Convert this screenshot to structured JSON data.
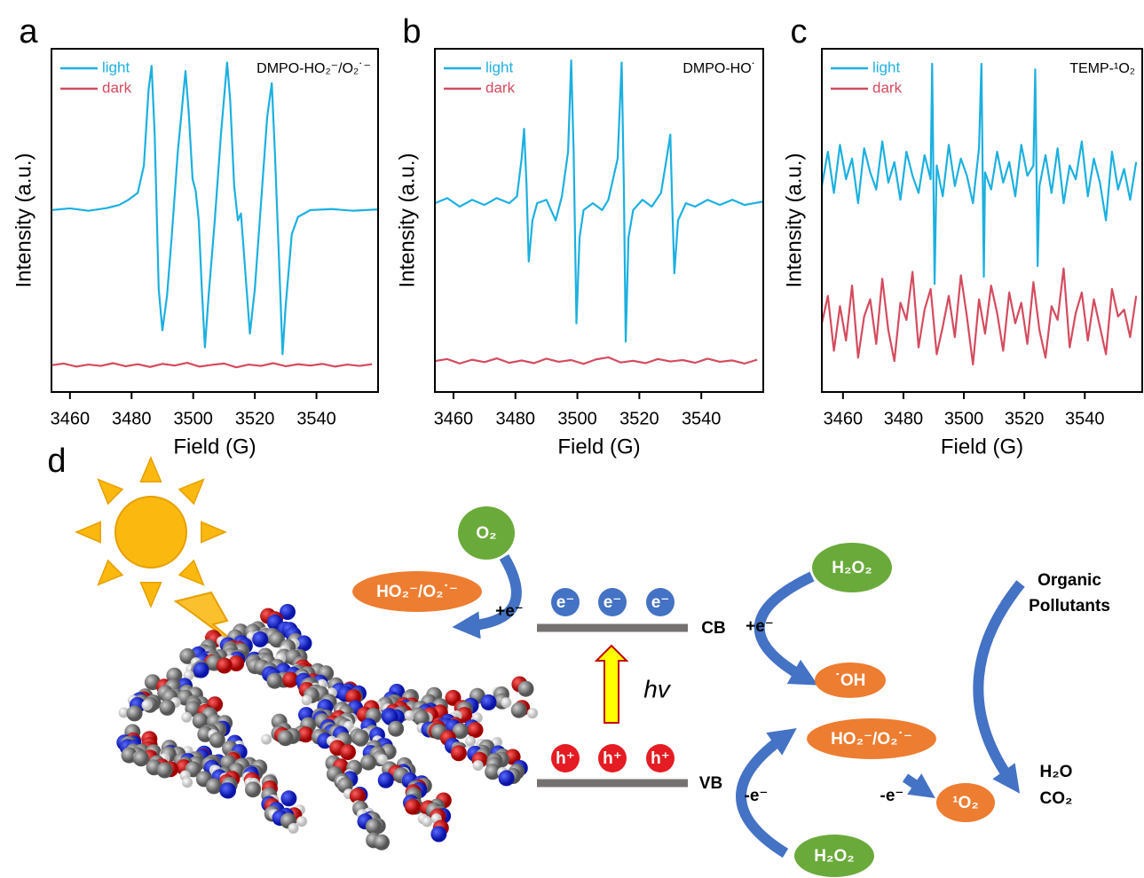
{
  "chart_data": [
    {
      "type": "line",
      "panel_label": "a",
      "annotation": "DMPO-HO₂⁻/O₂˙⁻",
      "x_label": "Field (G)",
      "y_label": "Intensity (a.u.)",
      "xlim": [
        3454,
        3560
      ],
      "xticks": [
        3460,
        3480,
        3500,
        3520,
        3540
      ],
      "ylim": [
        0,
        100
      ],
      "legend": "upper left",
      "series": [
        {
          "name": "light",
          "color": "#1cb0e0",
          "x": [
            3454,
            3460,
            3466,
            3472,
            3476,
            3479,
            3482,
            3484,
            3485.5,
            3486.5,
            3487.5,
            3488.8,
            3490,
            3491.5,
            3493,
            3495,
            3497.5,
            3498.5,
            3499.8,
            3500.8,
            3501.8,
            3502.8,
            3503.8,
            3505,
            3507,
            3509,
            3511,
            3512,
            3513.3,
            3514.5,
            3515.5,
            3516.5,
            3518.4,
            3520,
            3522,
            3524,
            3525.5,
            3526.5,
            3528,
            3529,
            3530,
            3532,
            3534,
            3538,
            3545,
            3552,
            3560
          ],
          "values": [
            53,
            53.5,
            52.8,
            53.6,
            54.5,
            56,
            58,
            66,
            88,
            95,
            75,
            30,
            18,
            28,
            45,
            70,
            93.5,
            82,
            62,
            58.6,
            50,
            30,
            13,
            28,
            50,
            75,
            96,
            85,
            60,
            50,
            52,
            40,
            17,
            30,
            55,
            80,
            90,
            70,
            35,
            11,
            25,
            46,
            51,
            53,
            53.3,
            52.8,
            53.2
          ]
        },
        {
          "name": "dark",
          "color": "#d44b5e",
          "x": [
            3454,
            3458,
            3462,
            3466,
            3470,
            3474,
            3478,
            3482,
            3486,
            3490,
            3494,
            3498,
            3502,
            3506,
            3510,
            3514,
            3518,
            3522,
            3526,
            3530,
            3534,
            3538,
            3542,
            3546,
            3550,
            3554,
            3558
          ],
          "values": [
            7.8,
            8.3,
            7.4,
            8.0,
            7.6,
            8.4,
            7.5,
            8.1,
            7.3,
            8.2,
            7.7,
            8.5,
            7.4,
            7.9,
            8.3,
            7.2,
            8.0,
            7.6,
            8.4,
            7.5,
            8.1,
            7.7,
            8.2,
            7.4,
            8.0,
            7.6,
            8.1
          ]
        }
      ]
    },
    {
      "type": "line",
      "panel_label": "b",
      "annotation": "DMPO-HO˙",
      "x_label": "Field (G)",
      "y_label": "Intensity (a.u.)",
      "xlim": [
        3454,
        3560
      ],
      "xticks": [
        3460,
        3480,
        3500,
        3520,
        3540
      ],
      "ylim": [
        0,
        100
      ],
      "legend": "upper left",
      "series": [
        {
          "name": "light",
          "color": "#1cb0e0",
          "x": [
            3454,
            3458,
            3462,
            3466,
            3470,
            3474,
            3478,
            3480.5,
            3482,
            3482.8,
            3483.6,
            3484.3,
            3485.5,
            3487,
            3490,
            3493,
            3495,
            3497,
            3498,
            3498.8,
            3499.7,
            3500.7,
            3502,
            3505,
            3508,
            3510,
            3513,
            3514.3,
            3515,
            3515.6,
            3516.5,
            3518,
            3521,
            3524,
            3527,
            3528.8,
            3530,
            3530.6,
            3531.3,
            3532.5,
            3535,
            3538,
            3542,
            3546,
            3550,
            3554,
            3560
          ],
          "values": [
            55,
            56.5,
            54,
            56,
            54.5,
            56.5,
            55,
            57,
            68,
            76.7,
            60,
            38,
            50,
            55,
            56,
            50,
            57,
            70,
            96.6,
            70,
            20,
            45,
            53,
            55,
            53,
            56,
            68,
            96,
            60,
            14.7,
            45,
            53,
            56,
            54,
            58,
            68,
            75,
            55,
            34.6,
            50,
            55,
            54,
            56,
            54.5,
            56,
            54.5,
            55.5
          ]
        },
        {
          "name": "dark",
          "color": "#d44b5e",
          "x": [
            3454,
            3458,
            3462,
            3466,
            3470,
            3474,
            3478,
            3482,
            3486,
            3490,
            3494,
            3498,
            3502,
            3506,
            3510,
            3514,
            3518,
            3522,
            3526,
            3530,
            3534,
            3538,
            3542,
            3546,
            3550,
            3554,
            3558
          ],
          "values": [
            9.0,
            9.6,
            8.3,
            9.4,
            8.7,
            9.8,
            8.5,
            9.2,
            8.4,
            9.7,
            8.8,
            9.3,
            8.2,
            9.5,
            10.1,
            8.6,
            9.1,
            8.4,
            9.6,
            8.9,
            9.3,
            8.5,
            9.7,
            8.8,
            9.2,
            8.3,
            9.4
          ]
        }
      ]
    },
    {
      "type": "line",
      "panel_label": "c",
      "annotation": "TEMP-¹O₂",
      "x_label": "Field (G)",
      "y_label": "Intensity (a.u.)",
      "xlim": [
        3453,
        3559
      ],
      "xticks": [
        3460,
        3480,
        3500,
        3520,
        3540
      ],
      "ylim": [
        0,
        100
      ],
      "legend": "upper left",
      "series": [
        {
          "name": "light",
          "color": "#1cb0e0",
          "x": [
            3453,
            3455,
            3457,
            3459,
            3461,
            3463,
            3465,
            3467,
            3469,
            3471,
            3473,
            3475,
            3477,
            3479,
            3481,
            3483,
            3485,
            3487,
            3489,
            3489.5,
            3490.3,
            3491,
            3493,
            3495,
            3497,
            3499,
            3501,
            3503,
            3505,
            3505.8,
            3506.6,
            3507,
            3509,
            3511,
            3513,
            3515,
            3517,
            3519,
            3521,
            3523,
            3523.6,
            3524.4,
            3525,
            3527,
            3529,
            3531,
            3533,
            3535,
            3537,
            3539,
            3541,
            3543,
            3545,
            3547,
            3549,
            3551,
            3553,
            3555,
            3557
          ],
          "values": [
            60,
            70,
            58,
            72,
            62,
            68,
            55,
            71,
            64,
            59,
            73,
            61,
            67,
            56,
            70,
            63,
            58,
            69,
            62,
            95.6,
            31.5,
            66,
            57,
            72,
            60,
            68,
            63,
            55,
            71,
            95.6,
            33.6,
            64,
            59,
            70,
            61,
            67,
            57,
            72,
            63,
            66,
            94,
            36.7,
            60,
            69,
            58,
            71,
            55,
            66,
            62,
            73,
            57,
            68,
            61,
            50,
            70,
            59,
            65,
            56,
            67
          ]
        },
        {
          "name": "dark",
          "color": "#d44b5e",
          "x": [
            3453,
            3455,
            3457,
            3459,
            3461,
            3463,
            3465,
            3467,
            3469,
            3471,
            3473,
            3475,
            3477,
            3479,
            3481,
            3483,
            3485,
            3487,
            3489,
            3491,
            3493,
            3495,
            3497,
            3499,
            3501,
            3503,
            3505,
            3507,
            3509,
            3511,
            3513,
            3515,
            3517,
            3519,
            3521,
            3523,
            3525,
            3527,
            3529,
            3531,
            3533,
            3535,
            3537,
            3539,
            3541,
            3543,
            3545,
            3547,
            3549,
            3551,
            3553,
            3555,
            3557
          ],
          "values": [
            20,
            28,
            12,
            25,
            15,
            31,
            10,
            22,
            27,
            14,
            33,
            18,
            9,
            26,
            21,
            35,
            13,
            24,
            30,
            11,
            19,
            28,
            16,
            34,
            22,
            8,
            27,
            17,
            31,
            23,
            12,
            29,
            20,
            26,
            14,
            32,
            18,
            10,
            25,
            21,
            36,
            13,
            23,
            29,
            15,
            27,
            19,
            11,
            30,
            22,
            24,
            16,
            28
          ]
        }
      ]
    }
  ],
  "diagram": {
    "panel_label": "d",
    "o2": "O₂",
    "ho2_top": "HO₂⁻/O₂˙⁻",
    "plus_e_left": "+e⁻",
    "electrons": [
      "e⁻",
      "e⁻",
      "e⁻"
    ],
    "cb": "CB",
    "hv": "hv",
    "holes": [
      "h⁺",
      "h⁺",
      "h⁺"
    ],
    "vb": "VB",
    "plus_e_right": "+e⁻",
    "h2o2_top": "H₂O₂",
    "oh": "˙OH",
    "ho2_right": "HO₂⁻/O₂˙⁻",
    "minus_e_left": "-e⁻",
    "minus_e_right": "-e⁻",
    "singlet_o2": "¹O₂",
    "h2o2_bottom": "H₂O₂",
    "organic_pollutants": [
      "Organic",
      "Pollutants"
    ],
    "products": [
      "H₂O",
      "CO₂"
    ]
  }
}
